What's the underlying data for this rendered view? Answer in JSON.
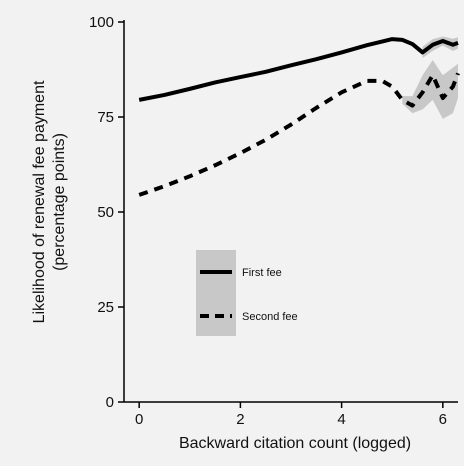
{
  "chart_data": {
    "type": "line",
    "xlabel": "Backward citation count (logged)",
    "ylabel_lines": [
      "Likelihood of renewal fee payment",
      "(percentage points)"
    ],
    "xlim": [
      -0.3,
      6.3
    ],
    "ylim": [
      0,
      100
    ],
    "xticks": [
      0,
      2,
      4,
      6
    ],
    "yticks": [
      0,
      25,
      50,
      75,
      100
    ],
    "grid": false,
    "legend_position": "center-left",
    "series": [
      {
        "name": "First fee",
        "style": "solid",
        "color": "#000000",
        "x": [
          0,
          0.5,
          1,
          1.5,
          2,
          2.5,
          3,
          3.5,
          4,
          4.5,
          5,
          5.2,
          5.4,
          5.6,
          5.8,
          6.0,
          6.2,
          6.3
        ],
        "y": [
          79.5,
          80.8,
          82.4,
          84.1,
          85.5,
          86.9,
          88.6,
          90.2,
          92.0,
          93.9,
          95.5,
          95.3,
          94.2,
          92.0,
          94.0,
          95.0,
          94.0,
          94.5
        ],
        "ci_upper": [
          null,
          null,
          null,
          null,
          null,
          null,
          null,
          null,
          null,
          null,
          null,
          null,
          null,
          93.5,
          95.5,
          96.2,
          95.6,
          96.0
        ],
        "ci_lower": [
          null,
          null,
          null,
          null,
          null,
          null,
          null,
          null,
          null,
          null,
          null,
          null,
          null,
          90.5,
          92.4,
          93.8,
          92.4,
          93.0
        ]
      },
      {
        "name": "Second fee",
        "style": "dashed",
        "color": "#000000",
        "x": [
          0,
          0.5,
          1,
          1.5,
          2,
          2.5,
          3,
          3.5,
          4,
          4.5,
          4.8,
          5.0,
          5.2,
          5.4,
          5.6,
          5.8,
          6.0,
          6.2,
          6.3
        ],
        "y": [
          54.5,
          56.8,
          59.4,
          62.3,
          65.5,
          69.0,
          73.0,
          77.4,
          81.5,
          84.5,
          84.5,
          83.0,
          79.5,
          78.0,
          81.5,
          86.0,
          80.0,
          83.0,
          86.5
        ],
        "ci_upper": [
          null,
          null,
          null,
          null,
          null,
          null,
          null,
          null,
          null,
          null,
          null,
          null,
          80.5,
          80.5,
          86.0,
          90.0,
          86.0,
          88.0,
          89.0
        ],
        "ci_lower": [
          null,
          null,
          null,
          null,
          null,
          null,
          null,
          null,
          null,
          null,
          null,
          null,
          78.5,
          76.0,
          77.0,
          79.5,
          74.5,
          76.0,
          80.0
        ]
      }
    ],
    "ci_color": "#c8c8c8"
  }
}
